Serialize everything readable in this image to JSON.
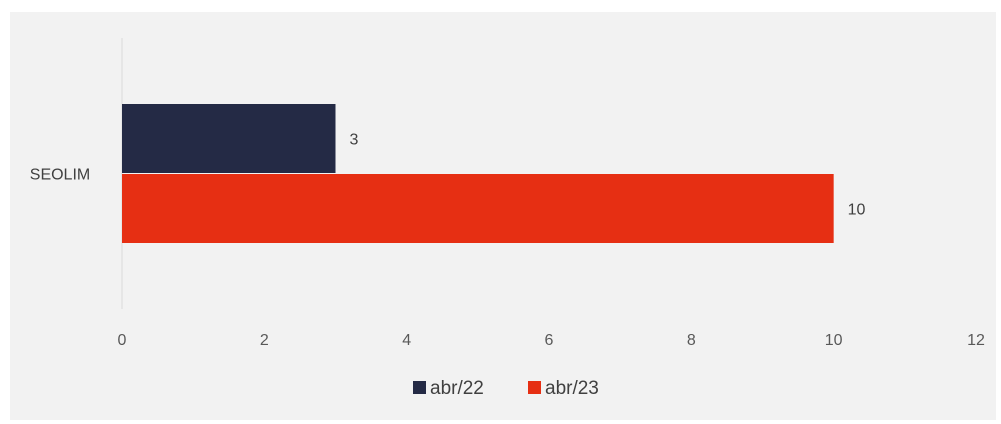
{
  "chart_data": {
    "type": "bar",
    "orientation": "horizontal",
    "categories": [
      "SEOLIM"
    ],
    "series": [
      {
        "name": "abr/22",
        "values": [
          3
        ],
        "color": "#242a45"
      },
      {
        "name": "abr/23",
        "values": [
          10
        ],
        "color": "#e62f13"
      }
    ],
    "xlim": [
      0,
      12
    ],
    "xticks": [
      0,
      2,
      4,
      6,
      8,
      10,
      12
    ],
    "data_labels": true,
    "legend_position": "bottom",
    "grid": false,
    "background": "#f2f2f2",
    "axis_color": "#d9d9d9"
  }
}
